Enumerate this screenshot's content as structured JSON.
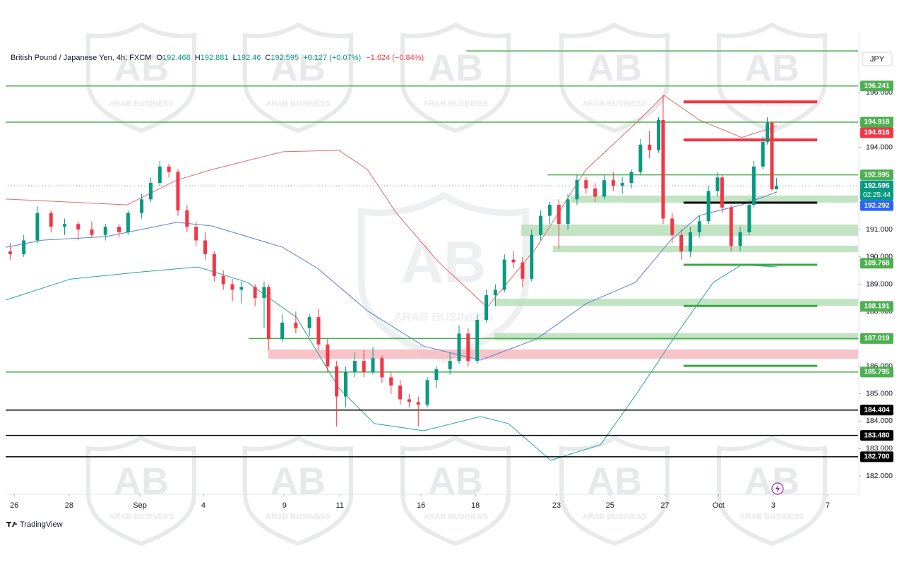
{
  "chart_data": {
    "type": "candlestick",
    "title": "British Pound / Japanese Yen, 4h, FXCM",
    "ohlc": [
      {
        "label": "O",
        "value": 192.468
      },
      {
        "label": "H",
        "value": 192.881
      },
      {
        "label": "L",
        "value": 192.46
      },
      {
        "label": "C",
        "value": 192.595
      }
    ],
    "change": "+0.127 (+0.07%)",
    "daily_change": "−1.624 (−0.84%)",
    "currency": "JPY",
    "branding": "TradingView",
    "watermark": {
      "logo": "AB",
      "name": "ARAB BUSINESS"
    },
    "up_color": "#089981",
    "down_color": "#f23645",
    "xlim": [
      0,
      188
    ],
    "ylim": [
      181.33,
      198.22
    ],
    "grid": false,
    "xticks": [
      {
        "value": 1.9,
        "label": "26"
      },
      {
        "value": 14,
        "label": "28"
      },
      {
        "value": 29.6,
        "label": "Sep"
      },
      {
        "value": 43.6,
        "label": "4"
      },
      {
        "value": 61.5,
        "label": "9"
      },
      {
        "value": 73.7,
        "label": "11"
      },
      {
        "value": 91.6,
        "label": "16"
      },
      {
        "value": 103.6,
        "label": "18"
      },
      {
        "value": 121.5,
        "label": "23"
      },
      {
        "value": 133.3,
        "label": "25"
      },
      {
        "value": 145.4,
        "label": "27"
      },
      {
        "value": 157.2,
        "label": "Oct"
      },
      {
        "value": 169.3,
        "label": "3"
      },
      {
        "value": 181.3,
        "label": "7"
      }
    ],
    "yticks": [
      {
        "value": 196,
        "label": "196.000"
      },
      {
        "value": 194,
        "label": "194.000"
      },
      {
        "value": 191,
        "label": "191.000"
      },
      {
        "value": 190,
        "label": "190.000"
      },
      {
        "value": 189,
        "label": "189.000"
      },
      {
        "value": 188,
        "label": "188.000"
      },
      {
        "value": 186,
        "label": "186.000"
      },
      {
        "value": 185,
        "label": "185.000"
      },
      {
        "value": 184,
        "label": "184.000"
      },
      {
        "value": 183,
        "label": "183.000"
      },
      {
        "value": 182,
        "label": "182.000"
      }
    ],
    "x": [
      1,
      4,
      7,
      10,
      13,
      16,
      19,
      22,
      25,
      27,
      30,
      32,
      34,
      36,
      38,
      40,
      42,
      44,
      46,
      48,
      50,
      52,
      55,
      57,
      58,
      61,
      64,
      67,
      69,
      71,
      73,
      75,
      77,
      79,
      81,
      83,
      85,
      87,
      89,
      91,
      93,
      95,
      98,
      100,
      102,
      104,
      106,
      108,
      110,
      112,
      114,
      116,
      118,
      120,
      122,
      124,
      126,
      128,
      130,
      132,
      134,
      136,
      138,
      140,
      142,
      144,
      145,
      147,
      149,
      151,
      153,
      155,
      157,
      158,
      160,
      162,
      164,
      165,
      167,
      168,
      169,
      170
    ],
    "open": [
      190.2,
      190.1,
      190.6,
      191.6,
      191.1,
      191.2,
      191.0,
      190.8,
      191.1,
      190.9,
      191.6,
      192.1,
      192.7,
      193.3,
      193.1,
      191.7,
      191.1,
      190.6,
      190.1,
      189.3,
      189.0,
      188.8,
      188.9,
      188.5,
      188.9,
      187.0,
      187.6,
      187.4,
      187.8,
      186.8,
      186.0,
      184.9,
      185.8,
      186.2,
      185.8,
      186.3,
      185.6,
      185.3,
      184.8,
      184.7,
      184.6,
      185.5,
      185.9,
      186.2,
      187.2,
      186.2,
      187.7,
      188.6,
      188.8,
      189.9,
      189.8,
      189.2,
      190.8,
      191.5,
      191.9,
      191.2,
      192.1,
      192.8,
      192.5,
      192.2,
      192.8,
      192.6,
      192.7,
      193.1,
      194.1,
      193.9,
      195.0,
      191.4,
      190.8,
      190.2,
      190.9,
      191.3,
      192.4,
      192.9,
      191.8,
      190.4,
      190.9,
      191.9,
      193.3,
      194.2,
      194.9,
      192.468
    ],
    "high": [
      190.5,
      190.8,
      191.85,
      191.7,
      191.4,
      191.3,
      191.3,
      191.2,
      191.2,
      191.7,
      192.3,
      192.9,
      193.5,
      193.4,
      193.2,
      191.9,
      191.3,
      190.9,
      190.2,
      189.5,
      189.2,
      189.1,
      189.0,
      189.1,
      189.0,
      187.9,
      188.0,
      187.9,
      188.1,
      187.0,
      186.2,
      186.0,
      186.5,
      186.6,
      186.7,
      186.4,
      185.8,
      185.5,
      185.0,
      184.9,
      185.6,
      186.0,
      186.5,
      187.5,
      187.4,
      187.9,
      188.8,
      189.0,
      190.1,
      190.2,
      190.0,
      191.0,
      191.7,
      192.0,
      192.1,
      192.3,
      193.0,
      192.9,
      192.7,
      193.0,
      193.1,
      192.9,
      193.2,
      194.3,
      194.6,
      195.1,
      195.9,
      191.6,
      191.0,
      191.1,
      191.5,
      192.6,
      193.1,
      193.0,
      191.9,
      191.1,
      192.1,
      193.5,
      194.4,
      195.1,
      194.95,
      192.881
    ],
    "low": [
      189.9,
      190.0,
      190.5,
      190.9,
      190.8,
      190.6,
      190.7,
      190.6,
      190.7,
      190.8,
      191.4,
      192.0,
      192.6,
      192.9,
      191.5,
      190.9,
      190.4,
      189.9,
      189.1,
      188.8,
      188.4,
      188.3,
      188.2,
      187.4,
      186.6,
      186.9,
      187.2,
      187.1,
      186.6,
      185.8,
      183.8,
      184.5,
      185.6,
      185.6,
      185.7,
      185.4,
      185.0,
      184.6,
      184.5,
      183.8,
      184.5,
      185.2,
      185.7,
      186.1,
      186.0,
      186.1,
      187.6,
      188.2,
      188.7,
      189.6,
      188.9,
      189.1,
      190.6,
      191.2,
      190.3,
      191.0,
      191.9,
      192.3,
      192.0,
      192.1,
      192.4,
      192.3,
      192.5,
      193.0,
      193.6,
      193.8,
      191.2,
      190.5,
      189.9,
      190.0,
      190.7,
      191.2,
      192.2,
      191.6,
      190.2,
      190.2,
      190.8,
      191.8,
      193.2,
      194.1,
      192.4,
      192.46
    ],
    "close": [
      190.1,
      190.6,
      191.6,
      191.1,
      191.2,
      191.0,
      190.8,
      191.1,
      190.9,
      191.6,
      192.1,
      192.7,
      193.3,
      193.1,
      191.7,
      191.1,
      190.6,
      190.1,
      189.3,
      189.0,
      188.8,
      188.9,
      188.5,
      188.9,
      187.0,
      187.6,
      187.4,
      187.8,
      186.8,
      186.0,
      184.9,
      185.8,
      186.2,
      185.8,
      186.3,
      185.6,
      185.3,
      184.8,
      184.7,
      184.6,
      185.5,
      185.9,
      186.2,
      187.2,
      186.2,
      187.7,
      188.6,
      188.8,
      189.9,
      189.8,
      189.2,
      190.8,
      191.5,
      191.9,
      191.2,
      192.1,
      192.8,
      192.5,
      192.2,
      192.8,
      192.6,
      192.7,
      193.1,
      194.1,
      193.9,
      195.0,
      191.4,
      190.8,
      190.2,
      190.9,
      191.3,
      192.4,
      192.9,
      191.8,
      190.4,
      190.9,
      191.9,
      193.3,
      194.2,
      194.9,
      192.47,
      192.595
    ],
    "indicators": [
      {
        "color": "#e06c6c",
        "x": [
          0,
          26.8,
          37.7,
          45.5,
          61.1,
          73.5,
          79.8,
          86,
          95.3,
          106.2,
          117.1,
          128,
          138.9,
          145.2,
          153,
          162.3,
          167,
          170.1
        ],
        "values": [
          192.11,
          191.9,
          192.8,
          193.19,
          193.84,
          193.89,
          193.19,
          191.64,
          189.84,
          188.16,
          190.35,
          193.19,
          194.87,
          195.9,
          195.0,
          194.36,
          194.61,
          194.79
        ]
      },
      {
        "color": "#5b7fd6",
        "x": [
          0,
          8.1,
          22.1,
          37.7,
          45.5,
          61.1,
          68.8,
          79.8,
          92.2,
          104.7,
          117.1,
          128,
          138.9,
          146.7,
          153,
          162.3,
          170.1
        ],
        "values": [
          190.35,
          190.61,
          190.74,
          191.26,
          191.13,
          190.35,
          189.58,
          188.03,
          186.74,
          186.23,
          187.0,
          188.29,
          189.07,
          190.61,
          191.51,
          191.9,
          192.37
        ]
      },
      {
        "color": "#26a69a",
        "x": [
          0,
          14.3,
          29.9,
          42.4,
          53.3,
          64.2,
          73.5,
          81.3,
          92.2,
          104.7,
          110.9,
          120.2,
          131.2,
          138.9,
          148.3,
          156.1,
          162.3,
          170.1
        ],
        "values": [
          188.42,
          189.19,
          189.45,
          189.63,
          189.07,
          187.78,
          185.2,
          183.91,
          183.65,
          184.17,
          183.91,
          182.57,
          183.14,
          184.94,
          187.26,
          189.07,
          189.71,
          189.63
        ]
      }
    ],
    "zones": [
      {
        "y0": 191.98,
        "y1": 192.24,
        "x0": 124.6,
        "x1": 188,
        "color": "#b7dfb8"
      },
      {
        "y0": 190.77,
        "y1": 191.18,
        "x0": 113.7,
        "x1": 188,
        "color": "#b7dfb8"
      },
      {
        "y0": 190.17,
        "y1": 190.41,
        "x0": 120.7,
        "x1": 188,
        "color": "#b7dfb8"
      },
      {
        "y0": 188.21,
        "y1": 188.47,
        "x0": 107.8,
        "x1": 188,
        "color": "#b7dfb8"
      },
      {
        "y0": 186.95,
        "y1": 187.21,
        "x0": 107.8,
        "x1": 188,
        "color": "#b7dfb8"
      },
      {
        "y0": 186.28,
        "y1": 186.62,
        "x0": 57.9,
        "x1": 188,
        "color": "#f7b8bf"
      }
    ],
    "lines": [
      {
        "y": 197.52,
        "x0": 101.6,
        "x1": 188,
        "color": "#4caf50",
        "width": 1.5
      },
      {
        "y": 196.241,
        "x0": 0,
        "x1": 188,
        "color": "#4caf50",
        "width": 1.5
      },
      {
        "y": 194.918,
        "x0": 0,
        "x1": 188,
        "color": "#4caf50",
        "width": 1.5
      },
      {
        "y": 192.995,
        "x0": 119.5,
        "x1": 188,
        "color": "#4caf50",
        "width": 1.5
      },
      {
        "y": 192.595,
        "x0": 0,
        "x1": 188,
        "color": "#9598a1",
        "width": 1,
        "dotted": true
      },
      {
        "y": 187.019,
        "x0": 53.6,
        "x1": 188,
        "color": "#4caf50",
        "width": 1.5
      },
      {
        "y": 185.795,
        "x0": 0,
        "x1": 188,
        "color": "#4caf50",
        "width": 1.5
      },
      {
        "y": 184.404,
        "x0": 0,
        "x1": 188,
        "color": "#000000",
        "width": 1.5
      },
      {
        "y": 183.48,
        "x0": 0,
        "x1": 188,
        "color": "#000000",
        "width": 1.5
      },
      {
        "y": 182.7,
        "x0": 0,
        "x1": 188,
        "color": "#000000",
        "width": 1.5
      },
      {
        "y": 195.66,
        "x0": 149.5,
        "x1": 179,
        "color": "#f23645",
        "width": 4
      },
      {
        "y": 194.27,
        "x0": 149.5,
        "x1": 179,
        "color": "#f23645",
        "width": 4
      },
      {
        "y": 191.98,
        "x0": 149.5,
        "x1": 179,
        "color": "#000000",
        "width": 3
      },
      {
        "y": 189.71,
        "x0": 149.5,
        "x1": 179,
        "color": "#3aa843",
        "width": 3
      },
      {
        "y": 188.21,
        "x0": 149.5,
        "x1": 179,
        "color": "#3aa843",
        "width": 3
      },
      {
        "y": 186.02,
        "x0": 149.5,
        "x1": 179,
        "color": "#3aa843",
        "width": 3
      }
    ],
    "levels": [
      {
        "value": 196.241,
        "label": "196.241",
        "color": "#4caf50"
      },
      {
        "value": 194.918,
        "label": "194.918",
        "color": "#4caf50"
      },
      {
        "value": 194.816,
        "label": "194.816",
        "color": "#f23645"
      },
      {
        "value": 192.995,
        "label": "192.995",
        "color": "#4caf50"
      },
      {
        "value": 192.595,
        "label": "192.595",
        "color": "#089981",
        "countdown": "02:25:44"
      },
      {
        "value": 192.292,
        "label": "192.292",
        "color": "#2962ff"
      },
      {
        "value": 189.768,
        "label": "189.768",
        "color": "#4caf50"
      },
      {
        "value": 188.191,
        "label": "188.191",
        "color": "#4caf50"
      },
      {
        "value": 187.019,
        "label": "187.019",
        "color": "#4caf50"
      },
      {
        "value": 185.795,
        "label": "185.795",
        "color": "#4caf50"
      },
      {
        "value": 184.404,
        "label": "184.404",
        "color": "#000000"
      },
      {
        "value": 183.48,
        "label": "183.480",
        "color": "#000000"
      },
      {
        "value": 182.7,
        "label": "182.700",
        "color": "#000000"
      }
    ]
  }
}
